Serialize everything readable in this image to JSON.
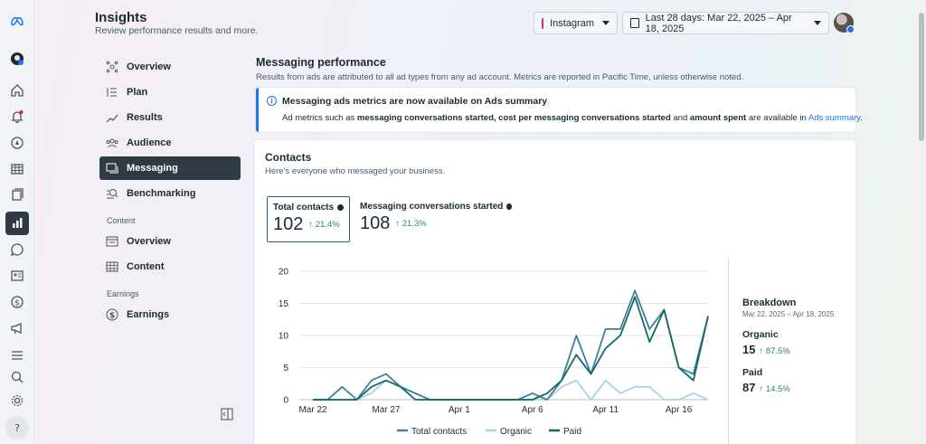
{
  "header": {
    "title": "Insights",
    "subtitle": "Review performance results and more.",
    "account_label": "Instagram",
    "date_range_label": "Last 28 days: Mar 22, 2025 – Apr 18, 2025"
  },
  "nav": {
    "items": [
      {
        "label": "Overview",
        "icon": "overview-icon"
      },
      {
        "label": "Plan",
        "icon": "plan-icon"
      },
      {
        "label": "Results",
        "icon": "results-icon"
      },
      {
        "label": "Audience",
        "icon": "audience-icon"
      },
      {
        "label": "Messaging",
        "icon": "messaging-icon",
        "active": true
      },
      {
        "label": "Benchmarking",
        "icon": "benchmarking-icon"
      }
    ],
    "content_section": "Content",
    "content_items": [
      {
        "label": "Overview",
        "icon": "content-overview-icon"
      },
      {
        "label": "Content",
        "icon": "content-grid-icon"
      }
    ],
    "earnings_section": "Earnings",
    "earnings_items": [
      {
        "label": "Earnings",
        "icon": "dollar-icon"
      }
    ]
  },
  "main": {
    "title": "Messaging performance",
    "subtitle": "Results from ads are attributed to all ad types from any ad account. Metrics are reported in Pacific Time, unless otherwise noted.",
    "notice": {
      "title": "Messaging ads metrics are now available on Ads summary",
      "body_1": "Ad metrics such as ",
      "body_b1": "messaging conversations started, cost per messaging conversations started",
      "body_2": " and ",
      "body_b2": "amount spent",
      "body_3": " are available in ",
      "body_link": "Ads summary",
      "body_4": "."
    },
    "contacts": {
      "title": "Contacts",
      "subtitle": "Here's everyone who messaged your business.",
      "metrics": [
        {
          "label": "Total contacts",
          "value": "102",
          "delta": "↑ 21.4%"
        },
        {
          "label": "Messaging conversations started",
          "value": "108",
          "delta": "↑ 21.3%"
        }
      ]
    },
    "breakdown": {
      "title": "Breakdown",
      "range": "Mar 22, 2025 – Apr 18, 2025",
      "organic_label": "Organic",
      "organic_value": "15",
      "organic_delta": "↑ 87.5%",
      "paid_label": "Paid",
      "paid_value": "87",
      "paid_delta": "↑ 14.5%"
    }
  },
  "colors": {
    "total": "#3e7ea0",
    "organic": "#a9d3ea",
    "paid": "#146a5f",
    "active_nav": "#2f3a44"
  },
  "chart_data": {
    "type": "line",
    "x_tick_labels": [
      "Mar 22",
      "Mar 27",
      "Apr 1",
      "Apr 6",
      "Apr 11",
      "Apr 16"
    ],
    "x_tick_index": [
      0,
      5,
      10,
      15,
      20,
      25
    ],
    "ylim": [
      0,
      20
    ],
    "y_ticks": [
      0,
      5,
      10,
      15,
      20
    ],
    "series": [
      {
        "name": "Total contacts",
        "values": [
          0,
          0,
          2,
          0,
          3,
          4,
          2,
          1,
          0,
          0,
          0,
          0,
          0,
          0,
          0,
          1,
          0,
          3,
          10,
          4,
          11,
          11,
          17,
          11,
          14,
          5,
          4,
          13
        ]
      },
      {
        "name": "Organic",
        "values": [
          0,
          0,
          0,
          0,
          1,
          3,
          2,
          1,
          0,
          0,
          0,
          0,
          0,
          0,
          0,
          0,
          0,
          2,
          3,
          0,
          3,
          1,
          2,
          2,
          0,
          0,
          1,
          0
        ]
      },
      {
        "name": "Paid",
        "values": [
          0,
          0,
          0,
          0,
          2,
          3,
          2,
          0,
          0,
          0,
          0,
          0,
          0,
          0,
          0,
          0,
          1,
          3,
          7,
          4,
          8,
          10,
          16,
          9,
          14,
          5,
          3,
          13
        ]
      }
    ]
  }
}
